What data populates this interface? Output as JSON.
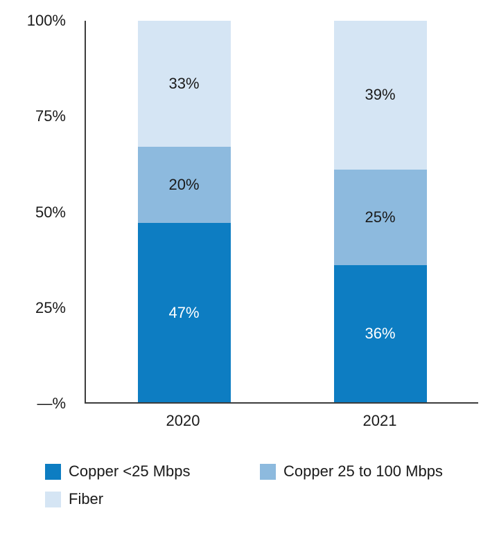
{
  "chart_data": {
    "type": "bar",
    "stacked": true,
    "orientation": "vertical",
    "categories": [
      "2020",
      "2021"
    ],
    "series": [
      {
        "name": "Copper <25 Mbps",
        "color": "#0d7dc2",
        "label_color": "#ffffff",
        "values": [
          47,
          36
        ]
      },
      {
        "name": "Copper 25 to 100 Mbps",
        "color": "#8dbade",
        "label_color": "#1a1a1a",
        "values": [
          20,
          25
        ]
      },
      {
        "name": "Fiber",
        "color": "#d5e5f4",
        "label_color": "#1a1a1a",
        "values": [
          33,
          39
        ]
      }
    ],
    "value_suffix": "%",
    "ylim": [
      0,
      100
    ],
    "yticks": [
      {
        "value": 100,
        "label": "100%"
      },
      {
        "value": 75,
        "label": "75%"
      },
      {
        "value": 50,
        "label": "50%"
      },
      {
        "value": 25,
        "label": "25%"
      },
      {
        "value": 0,
        "label": "—%"
      }
    ],
    "grid": false,
    "legend_position": "bottom",
    "axis_color": "#3c3c3c"
  }
}
